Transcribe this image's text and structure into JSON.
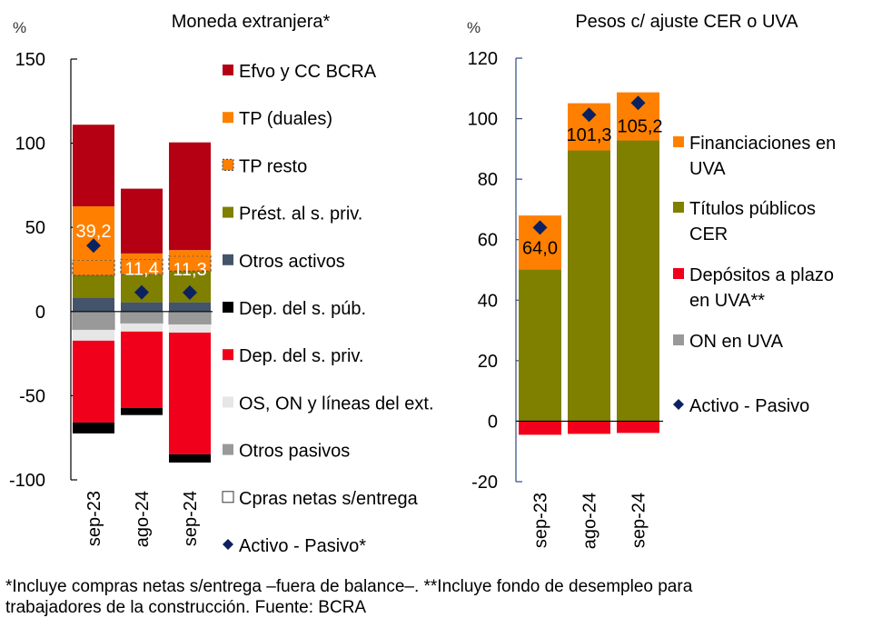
{
  "chart_data": [
    {
      "type": "bar",
      "stacked": true,
      "title": "Moneda extranjera*",
      "ylabel": "%",
      "ylim": [
        -100,
        150
      ],
      "yticks": [
        150,
        100,
        50,
        0,
        -50,
        -100
      ],
      "categories": [
        "sep-23",
        "ago-24",
        "sep-24"
      ],
      "positive_series": [
        {
          "name": "Otros activos",
          "color": "#44546a",
          "values": [
            8,
            5.5,
            5.5
          ]
        },
        {
          "name": "Prést. al s. priv.",
          "color": "#7f7f00",
          "values": [
            13.5,
            16.5,
            18.5
          ]
        },
        {
          "name": "TP resto",
          "color": "#ff8000",
          "dashed": true,
          "values": [
            9,
            9,
            9
          ]
        },
        {
          "name": "TP (duales)",
          "color": "#ff8000",
          "values": [
            32,
            3.5,
            3.5
          ]
        },
        {
          "name": "Efvo y CC BCRA",
          "color": "#b50014",
          "values": [
            48.5,
            38.5,
            64
          ]
        }
      ],
      "negative_series": [
        {
          "name": "Otros pasivos",
          "color": "#999999",
          "values": [
            -10.8,
            -7,
            -7.6
          ]
        },
        {
          "name": "OS, ON y líneas del ext.",
          "color": "#e6e6e6",
          "values": [
            -6.5,
            -4.9,
            -4.9
          ]
        },
        {
          "name": "Dep. del s. priv.",
          "color": "#f0001a",
          "values": [
            -48.6,
            -45.3,
            -72.3
          ]
        },
        {
          "name": "Dep. del s. púb.",
          "color": "#000000",
          "values": [
            -6.5,
            -4.3,
            -4.9
          ]
        }
      ],
      "markers": {
        "name": "Activo - Pasivo*",
        "color": "#0c2160",
        "values": [
          39.2,
          11.4,
          11.3
        ],
        "labels": [
          "39,2",
          "11,4",
          "11,3"
        ],
        "label_color": "#ffffff"
      },
      "legend": [
        {
          "label": "Efvo y CC BCRA",
          "color": "#b50014",
          "kind": "square"
        },
        {
          "label": "TP (duales)",
          "color": "#ff8000",
          "kind": "square"
        },
        {
          "label": "TP resto",
          "color": "#ff8000",
          "kind": "dashed"
        },
        {
          "label": "Prést. al s. priv.",
          "color": "#7f7f00",
          "kind": "square"
        },
        {
          "label": "Otros activos",
          "color": "#44546a",
          "kind": "square"
        },
        {
          "label": "Dep. del s. púb.",
          "color": "#000000",
          "kind": "square"
        },
        {
          "label": "Dep. del s. priv.",
          "color": "#f0001a",
          "kind": "square"
        },
        {
          "label": "OS, ON y líneas del ext.",
          "color": "#e6e6e6",
          "kind": "square"
        },
        {
          "label": "Otros pasivos",
          "color": "#999999",
          "kind": "square"
        },
        {
          "label": "Cpras netas s/entrega",
          "color": "#ffffff",
          "kind": "outline"
        },
        {
          "label": "Activo - Pasivo*",
          "color": "#0c2160",
          "kind": "diamond"
        }
      ],
      "legend_position": "right"
    },
    {
      "type": "bar",
      "stacked": true,
      "title": "Pesos c/ ajuste  CER o UVA",
      "ylabel": "%",
      "ylim": [
        -20,
        120
      ],
      "yticks": [
        120,
        100,
        80,
        60,
        40,
        20,
        0,
        -20
      ],
      "categories": [
        "sep-23",
        "ago-24",
        "sep-24"
      ],
      "positive_series": [
        {
          "name": "Títulos públicos CER",
          "color": "#7f7f00",
          "values": [
            50.2,
            89.5,
            92.8
          ]
        },
        {
          "name": "Financiaciones en UVA",
          "color": "#ff8000",
          "values": [
            17.8,
            15.6,
            15.9
          ]
        }
      ],
      "negative_series": [
        {
          "name": "ON en UVA",
          "color": "#999999",
          "values": [
            0,
            0,
            0
          ]
        },
        {
          "name": "Depósitos a plazo en UVA**",
          "color": "#f0001a",
          "values": [
            -4.5,
            -4.2,
            -3.9
          ]
        }
      ],
      "markers": {
        "name": "Activo - Pasivo",
        "color": "#0c2160",
        "values": [
          64.0,
          101.3,
          105.2
        ],
        "labels": [
          "64,0",
          "101,3",
          "105,2"
        ],
        "label_color": "#000000"
      },
      "legend": [
        {
          "label": "Financiaciones en",
          "label2": "UVA",
          "color": "#ff8000",
          "kind": "square"
        },
        {
          "label": "Títulos públicos",
          "label2": "CER",
          "color": "#7f7f00",
          "kind": "square"
        },
        {
          "label": "Depósitos a plazo",
          "label2": "en UVA**",
          "color": "#f0001a",
          "kind": "square"
        },
        {
          "label": "ON en UVA",
          "color": "#999999",
          "kind": "square"
        },
        {
          "label": "Activo - Pasivo",
          "color": "#0c2160",
          "kind": "diamond"
        }
      ],
      "legend_position": "right"
    }
  ],
  "footnote": {
    "line1": "*Incluye compras netas s/entrega –fuera de balance–. **Incluye fondo de desempleo para",
    "line2": "trabajadores de la construcción. Fuente: BCRA"
  }
}
